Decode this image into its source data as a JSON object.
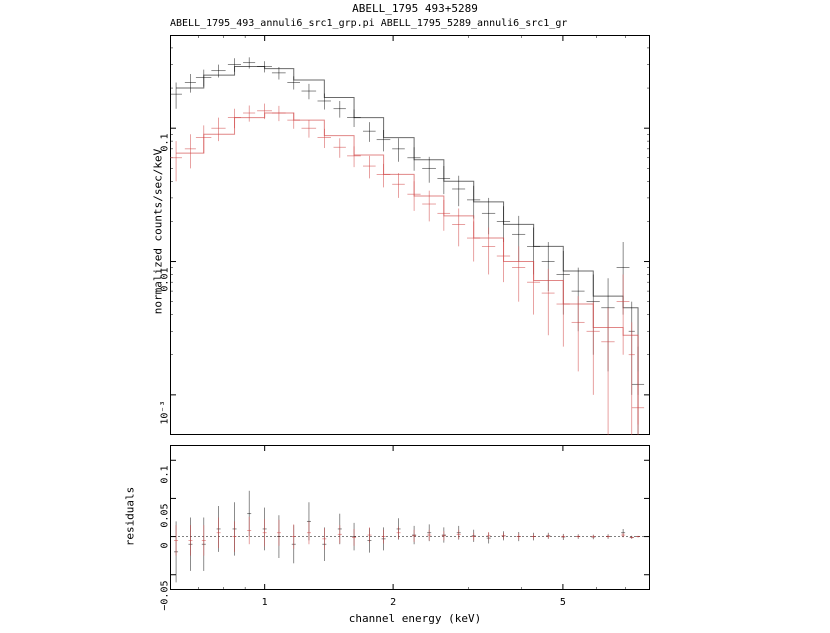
{
  "title": "ABELL_1795 493+5289",
  "subtitle": "ABELL_1795_493_annuli6_src1_grp.pi ABELL_1795_5289_annuli6_src1_gr",
  "xlabel": "channel energy (keV)",
  "ylabel_main": "normalized counts/sec/keV",
  "ylabel_residual": "residuals",
  "xscale": "log",
  "yscale_main": "log",
  "yscale_residual": "linear",
  "xlim": [
    0.6,
    8.0
  ],
  "ylim_main": [
    0.0005,
    0.5
  ],
  "ylim_residual": [
    -0.07,
    0.12
  ],
  "xticks": [
    1,
    2,
    5
  ],
  "yticks_main": [
    0.001,
    0.01,
    0.1
  ],
  "yticks_main_labels": [
    "10⁻³",
    "0.01",
    "0.1"
  ],
  "yticks_residual": [
    -0.05,
    0,
    0.05,
    0.1
  ],
  "yticks_residual_labels": [
    "−0.05",
    "0",
    "0.05",
    "0.1"
  ],
  "background_color": "#ffffff",
  "border_color": "#000000",
  "series": [
    {
      "name": "493",
      "color": "#000000",
      "opacity": 0.65,
      "linewidth": 0.7,
      "data": [
        {
          "x": 0.62,
          "y": 0.18,
          "yerr": 0.04,
          "xerr": 0.02
        },
        {
          "x": 0.67,
          "y": 0.22,
          "yerr": 0.035,
          "xerr": 0.02
        },
        {
          "x": 0.72,
          "y": 0.24,
          "yerr": 0.035,
          "xerr": 0.03
        },
        {
          "x": 0.78,
          "y": 0.27,
          "yerr": 0.03,
          "xerr": 0.03
        },
        {
          "x": 0.85,
          "y": 0.3,
          "yerr": 0.035,
          "xerr": 0.03
        },
        {
          "x": 0.92,
          "y": 0.31,
          "yerr": 0.03,
          "xerr": 0.03
        },
        {
          "x": 1.0,
          "y": 0.29,
          "yerr": 0.028,
          "xerr": 0.04
        },
        {
          "x": 1.08,
          "y": 0.26,
          "yerr": 0.028,
          "xerr": 0.04
        },
        {
          "x": 1.17,
          "y": 0.22,
          "yerr": 0.025,
          "xerr": 0.04
        },
        {
          "x": 1.27,
          "y": 0.19,
          "yerr": 0.025,
          "xerr": 0.05
        },
        {
          "x": 1.38,
          "y": 0.16,
          "yerr": 0.022,
          "xerr": 0.05
        },
        {
          "x": 1.5,
          "y": 0.14,
          "yerr": 0.02,
          "xerr": 0.05
        },
        {
          "x": 1.62,
          "y": 0.12,
          "yerr": 0.018,
          "xerr": 0.06
        },
        {
          "x": 1.76,
          "y": 0.095,
          "yerr": 0.016,
          "xerr": 0.06
        },
        {
          "x": 1.9,
          "y": 0.082,
          "yerr": 0.015,
          "xerr": 0.07
        },
        {
          "x": 2.06,
          "y": 0.07,
          "yerr": 0.014,
          "xerr": 0.07
        },
        {
          "x": 2.24,
          "y": 0.06,
          "yerr": 0.012,
          "xerr": 0.08
        },
        {
          "x": 2.43,
          "y": 0.05,
          "yerr": 0.011,
          "xerr": 0.09
        },
        {
          "x": 2.63,
          "y": 0.042,
          "yerr": 0.01,
          "xerr": 0.09
        },
        {
          "x": 2.85,
          "y": 0.035,
          "yerr": 0.009,
          "xerr": 0.1
        },
        {
          "x": 3.09,
          "y": 0.029,
          "yerr": 0.008,
          "xerr": 0.11
        },
        {
          "x": 3.35,
          "y": 0.023,
          "yerr": 0.007,
          "xerr": 0.12
        },
        {
          "x": 3.63,
          "y": 0.02,
          "yerr": 0.006,
          "xerr": 0.13
        },
        {
          "x": 3.94,
          "y": 0.016,
          "yerr": 0.006,
          "xerr": 0.14
        },
        {
          "x": 4.27,
          "y": 0.013,
          "yerr": 0.005,
          "xerr": 0.15
        },
        {
          "x": 4.62,
          "y": 0.01,
          "yerr": 0.004,
          "xerr": 0.16
        },
        {
          "x": 5.01,
          "y": 0.008,
          "yerr": 0.004,
          "xerr": 0.18
        },
        {
          "x": 5.43,
          "y": 0.006,
          "yerr": 0.003,
          "xerr": 0.19
        },
        {
          "x": 5.89,
          "y": 0.005,
          "yerr": 0.003,
          "xerr": 0.21
        },
        {
          "x": 6.38,
          "y": 0.0045,
          "yerr": 0.003,
          "xerr": 0.23
        },
        {
          "x": 6.92,
          "y": 0.009,
          "yerr": 0.005,
          "xerr": 0.24
        },
        {
          "x": 7.25,
          "y": 0.003,
          "yerr": 0.002,
          "xerr": 0.12
        },
        {
          "x": 7.5,
          "y": 0.0012,
          "yerr": 0.0011,
          "xerr": 0.25
        }
      ],
      "model": [
        {
          "x": 0.62,
          "y": 0.2
        },
        {
          "x": 0.72,
          "y": 0.25
        },
        {
          "x": 0.85,
          "y": 0.29
        },
        {
          "x": 1.0,
          "y": 0.28
        },
        {
          "x": 1.17,
          "y": 0.23
        },
        {
          "x": 1.38,
          "y": 0.17
        },
        {
          "x": 1.62,
          "y": 0.12
        },
        {
          "x": 1.9,
          "y": 0.085
        },
        {
          "x": 2.24,
          "y": 0.058
        },
        {
          "x": 2.63,
          "y": 0.04
        },
        {
          "x": 3.09,
          "y": 0.028
        },
        {
          "x": 3.63,
          "y": 0.019
        },
        {
          "x": 4.27,
          "y": 0.013
        },
        {
          "x": 5.01,
          "y": 0.0085
        },
        {
          "x": 5.89,
          "y": 0.0055
        },
        {
          "x": 6.92,
          "y": 0.0045
        },
        {
          "x": 7.5,
          "y": 0.001
        }
      ],
      "residuals": [
        {
          "x": 0.62,
          "y": -0.02,
          "yerr": 0.04
        },
        {
          "x": 0.67,
          "y": -0.01,
          "yerr": 0.035
        },
        {
          "x": 0.72,
          "y": -0.01,
          "yerr": 0.035
        },
        {
          "x": 0.78,
          "y": 0.01,
          "yerr": 0.03
        },
        {
          "x": 0.85,
          "y": 0.01,
          "yerr": 0.035
        },
        {
          "x": 0.92,
          "y": 0.03,
          "yerr": 0.03
        },
        {
          "x": 1.0,
          "y": 0.01,
          "yerr": 0.028
        },
        {
          "x": 1.08,
          "y": 0.0,
          "yerr": 0.028
        },
        {
          "x": 1.17,
          "y": -0.01,
          "yerr": 0.025
        },
        {
          "x": 1.27,
          "y": 0.02,
          "yerr": 0.025
        },
        {
          "x": 1.38,
          "y": -0.01,
          "yerr": 0.022
        },
        {
          "x": 1.5,
          "y": 0.01,
          "yerr": 0.02
        },
        {
          "x": 1.62,
          "y": 0.0,
          "yerr": 0.018
        },
        {
          "x": 1.76,
          "y": -0.005,
          "yerr": 0.016
        },
        {
          "x": 1.9,
          "y": -0.003,
          "yerr": 0.015
        },
        {
          "x": 2.06,
          "y": 0.01,
          "yerr": 0.014
        },
        {
          "x": 2.24,
          "y": 0.002,
          "yerr": 0.012
        },
        {
          "x": 2.43,
          "y": 0.005,
          "yerr": 0.011
        },
        {
          "x": 2.63,
          "y": 0.002,
          "yerr": 0.01
        },
        {
          "x": 2.85,
          "y": 0.005,
          "yerr": 0.009
        },
        {
          "x": 3.09,
          "y": 0.001,
          "yerr": 0.008
        },
        {
          "x": 3.35,
          "y": -0.002,
          "yerr": 0.007
        },
        {
          "x": 3.63,
          "y": 0.001,
          "yerr": 0.006
        },
        {
          "x": 3.94,
          "y": 0.0,
          "yerr": 0.006
        },
        {
          "x": 4.27,
          "y": 0.0,
          "yerr": 0.005
        },
        {
          "x": 4.62,
          "y": 0.001,
          "yerr": 0.004
        },
        {
          "x": 5.01,
          "y": -0.0005,
          "yerr": 0.004
        },
        {
          "x": 5.43,
          "y": 0.0,
          "yerr": 0.003
        },
        {
          "x": 5.89,
          "y": -0.0005,
          "yerr": 0.003
        },
        {
          "x": 6.38,
          "y": 0.0,
          "yerr": 0.003
        },
        {
          "x": 6.92,
          "y": 0.005,
          "yerr": 0.005
        },
        {
          "x": 7.25,
          "y": -0.001,
          "yerr": 0.002
        },
        {
          "x": 7.5,
          "y": 0.0,
          "yerr": 0.001
        }
      ]
    },
    {
      "name": "5289",
      "color": "#d04040",
      "opacity": 0.7,
      "linewidth": 0.7,
      "data": [
        {
          "x": 0.62,
          "y": 0.06,
          "yerr": 0.02,
          "xerr": 0.02
        },
        {
          "x": 0.67,
          "y": 0.07,
          "yerr": 0.02,
          "xerr": 0.02
        },
        {
          "x": 0.72,
          "y": 0.085,
          "yerr": 0.02,
          "xerr": 0.03
        },
        {
          "x": 0.78,
          "y": 0.1,
          "yerr": 0.02,
          "xerr": 0.03
        },
        {
          "x": 0.85,
          "y": 0.12,
          "yerr": 0.02,
          "xerr": 0.03
        },
        {
          "x": 0.92,
          "y": 0.13,
          "yerr": 0.018,
          "xerr": 0.03
        },
        {
          "x": 1.0,
          "y": 0.135,
          "yerr": 0.018,
          "xerr": 0.04
        },
        {
          "x": 1.08,
          "y": 0.13,
          "yerr": 0.017,
          "xerr": 0.04
        },
        {
          "x": 1.17,
          "y": 0.115,
          "yerr": 0.016,
          "xerr": 0.04
        },
        {
          "x": 1.27,
          "y": 0.1,
          "yerr": 0.015,
          "xerr": 0.05
        },
        {
          "x": 1.38,
          "y": 0.085,
          "yerr": 0.014,
          "xerr": 0.05
        },
        {
          "x": 1.5,
          "y": 0.072,
          "yerr": 0.012,
          "xerr": 0.05
        },
        {
          "x": 1.62,
          "y": 0.062,
          "yerr": 0.011,
          "xerr": 0.06
        },
        {
          "x": 1.76,
          "y": 0.052,
          "yerr": 0.01,
          "xerr": 0.06
        },
        {
          "x": 1.9,
          "y": 0.045,
          "yerr": 0.009,
          "xerr": 0.07
        },
        {
          "x": 2.06,
          "y": 0.038,
          "yerr": 0.008,
          "xerr": 0.07
        },
        {
          "x": 2.24,
          "y": 0.032,
          "yerr": 0.008,
          "xerr": 0.08
        },
        {
          "x": 2.43,
          "y": 0.027,
          "yerr": 0.007,
          "xerr": 0.09
        },
        {
          "x": 2.63,
          "y": 0.023,
          "yerr": 0.006,
          "xerr": 0.09
        },
        {
          "x": 2.85,
          "y": 0.019,
          "yerr": 0.006,
          "xerr": 0.1
        },
        {
          "x": 3.09,
          "y": 0.015,
          "yerr": 0.005,
          "xerr": 0.11
        },
        {
          "x": 3.35,
          "y": 0.013,
          "yerr": 0.005,
          "xerr": 0.12
        },
        {
          "x": 3.63,
          "y": 0.011,
          "yerr": 0.004,
          "xerr": 0.13
        },
        {
          "x": 3.94,
          "y": 0.009,
          "yerr": 0.004,
          "xerr": 0.14
        },
        {
          "x": 4.27,
          "y": 0.007,
          "yerr": 0.003,
          "xerr": 0.15
        },
        {
          "x": 4.62,
          "y": 0.0058,
          "yerr": 0.003,
          "xerr": 0.16
        },
        {
          "x": 5.01,
          "y": 0.0048,
          "yerr": 0.0025,
          "xerr": 0.18
        },
        {
          "x": 5.43,
          "y": 0.0035,
          "yerr": 0.002,
          "xerr": 0.19
        },
        {
          "x": 5.89,
          "y": 0.003,
          "yerr": 0.002,
          "xerr": 0.21
        },
        {
          "x": 6.38,
          "y": 0.0025,
          "yerr": 0.002,
          "xerr": 0.23
        },
        {
          "x": 6.92,
          "y": 0.005,
          "yerr": 0.003,
          "xerr": 0.24
        },
        {
          "x": 7.25,
          "y": 0.002,
          "yerr": 0.0015,
          "xerr": 0.12
        },
        {
          "x": 7.5,
          "y": 0.0008,
          "yerr": 0.0007,
          "xerr": 0.25
        }
      ],
      "model": [
        {
          "x": 0.62,
          "y": 0.065
        },
        {
          "x": 0.72,
          "y": 0.09
        },
        {
          "x": 0.85,
          "y": 0.12
        },
        {
          "x": 1.0,
          "y": 0.13
        },
        {
          "x": 1.17,
          "y": 0.115
        },
        {
          "x": 1.38,
          "y": 0.088
        },
        {
          "x": 1.62,
          "y": 0.063
        },
        {
          "x": 1.9,
          "y": 0.045
        },
        {
          "x": 2.24,
          "y": 0.031
        },
        {
          "x": 2.63,
          "y": 0.022
        },
        {
          "x": 3.09,
          "y": 0.015
        },
        {
          "x": 3.63,
          "y": 0.01
        },
        {
          "x": 4.27,
          "y": 0.0072
        },
        {
          "x": 5.01,
          "y": 0.0048
        },
        {
          "x": 5.89,
          "y": 0.0032
        },
        {
          "x": 6.92,
          "y": 0.0028
        },
        {
          "x": 7.5,
          "y": 0.0006
        }
      ],
      "residuals": [
        {
          "x": 0.62,
          "y": -0.005,
          "yerr": 0.02
        },
        {
          "x": 0.67,
          "y": -0.005,
          "yerr": 0.02
        },
        {
          "x": 0.72,
          "y": -0.005,
          "yerr": 0.02
        },
        {
          "x": 0.78,
          "y": 0.005,
          "yerr": 0.02
        },
        {
          "x": 0.85,
          "y": 0.0,
          "yerr": 0.02
        },
        {
          "x": 0.92,
          "y": 0.008,
          "yerr": 0.018
        },
        {
          "x": 1.0,
          "y": 0.005,
          "yerr": 0.018
        },
        {
          "x": 1.08,
          "y": 0.005,
          "yerr": 0.017
        },
        {
          "x": 1.17,
          "y": 0.0,
          "yerr": 0.016
        },
        {
          "x": 1.27,
          "y": 0.005,
          "yerr": 0.015
        },
        {
          "x": 1.38,
          "y": -0.003,
          "yerr": 0.014
        },
        {
          "x": 1.5,
          "y": 0.003,
          "yerr": 0.012
        },
        {
          "x": 1.62,
          "y": -0.001,
          "yerr": 0.011
        },
        {
          "x": 1.76,
          "y": 0.002,
          "yerr": 0.01
        },
        {
          "x": 1.9,
          "y": 0.0,
          "yerr": 0.009
        },
        {
          "x": 2.06,
          "y": 0.005,
          "yerr": 0.008
        },
        {
          "x": 2.24,
          "y": 0.001,
          "yerr": 0.008
        },
        {
          "x": 2.43,
          "y": 0.002,
          "yerr": 0.007
        },
        {
          "x": 2.63,
          "y": 0.001,
          "yerr": 0.006
        },
        {
          "x": 2.85,
          "y": 0.003,
          "yerr": 0.006
        },
        {
          "x": 3.09,
          "y": 0.0,
          "yerr": 0.005
        },
        {
          "x": 3.35,
          "y": 0.001,
          "yerr": 0.005
        },
        {
          "x": 3.63,
          "y": 0.001,
          "yerr": 0.004
        },
        {
          "x": 3.94,
          "y": 0.0,
          "yerr": 0.004
        },
        {
          "x": 4.27,
          "y": 0.0,
          "yerr": 0.003
        },
        {
          "x": 4.62,
          "y": 0.0005,
          "yerr": 0.003
        },
        {
          "x": 5.01,
          "y": 0.0,
          "yerr": 0.0025
        },
        {
          "x": 5.43,
          "y": 0.0,
          "yerr": 0.002
        },
        {
          "x": 5.89,
          "y": -0.0002,
          "yerr": 0.002
        },
        {
          "x": 6.38,
          "y": 0.0,
          "yerr": 0.002
        },
        {
          "x": 6.92,
          "y": 0.002,
          "yerr": 0.003
        },
        {
          "x": 7.25,
          "y": -0.001,
          "yerr": 0.0015
        },
        {
          "x": 7.5,
          "y": 0.0,
          "yerr": 0.0007
        }
      ]
    }
  ]
}
